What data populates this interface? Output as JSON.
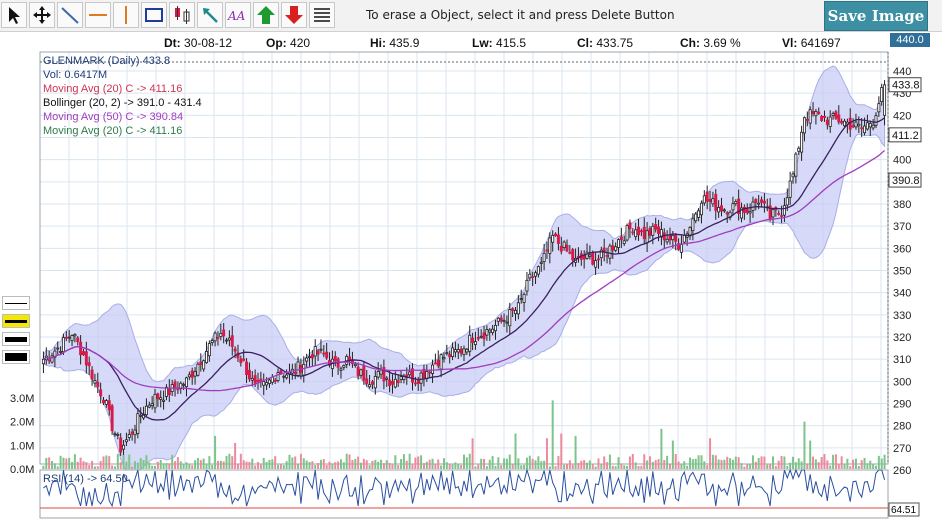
{
  "toolbar": {
    "hint": "To erase a Object, select it and press Delete Button",
    "save_label": "Save Image",
    "tools": [
      "pointer-icon",
      "move-icon",
      "trendline-icon",
      "horizontal-line-icon",
      "vertical-line-icon",
      "rectangle-icon",
      "fibonacci-icon",
      "arrow-icon",
      "text-icon",
      "up-arrow-icon",
      "down-arrow-icon",
      "lines-icon"
    ]
  },
  "info": {
    "dt_label": "Dt:",
    "dt": "30-08-12",
    "op_label": "Op:",
    "op": "420",
    "hi_label": "Hi:",
    "hi": "435.9",
    "lw_label": "Lw:",
    "lw": "415.5",
    "cl_label": "Cl:",
    "cl": "433.75",
    "ch_label": "Ch:",
    "ch": "3.69 %",
    "vl_label": "Vl:",
    "vl": "641697"
  },
  "last_price_badge": "440.0",
  "legend": {
    "title": "GLENMARK (Daily) 433.8",
    "vol": "Vol: 0.6417M",
    "ma20": "Moving Avg (20) C -> 411.16",
    "bollinger": "Bollinger (20, 2) -> 391.0 - 431.4",
    "ma50": "Moving Avg (50) C -> 390.84",
    "ma20b": "Moving Avg (20) C -> 411.16",
    "rsi": "RSI (14) -> 64.50"
  },
  "colors": {
    "up": "#ffffff",
    "down": "#d81b4a",
    "band_fill": "#c8ccf4",
    "band_line": "#a9aee8",
    "ma20": "#3a1f60",
    "ma50": "#a13cc0",
    "vol_up": "#7ec48a",
    "vol_down": "#ee8a9e",
    "grid": "#d9e6ef",
    "accent": "#3d8fa3",
    "title_blue": "#1f3d7a",
    "ma_red": "#cc3355",
    "ma_green": "#2f7a4a"
  },
  "chart_data": {
    "type": "candlestick",
    "title": "GLENMARK (Daily) 433.8",
    "ylim": [
      260,
      440
    ],
    "y_ticks": [
      260,
      270,
      280,
      290,
      300,
      310,
      320,
      330,
      340,
      350,
      360,
      370,
      380,
      390,
      400,
      410,
      420,
      430,
      440
    ],
    "y_tags": [
      {
        "label": "433.8",
        "value": 433.8
      },
      {
        "label": "411.2",
        "value": 411.2
      },
      {
        "label": "390.8",
        "value": 390.8
      }
    ],
    "close_anchors": [
      [
        0,
        310
      ],
      [
        6,
        316
      ],
      [
        10,
        322
      ],
      [
        14,
        312
      ],
      [
        18,
        300
      ],
      [
        21,
        293
      ],
      [
        24,
        280
      ],
      [
        27,
        270
      ],
      [
        30,
        275
      ],
      [
        34,
        285
      ],
      [
        38,
        292
      ],
      [
        42,
        294
      ],
      [
        46,
        297
      ],
      [
        50,
        300
      ],
      [
        54,
        308
      ],
      [
        58,
        316
      ],
      [
        62,
        322
      ],
      [
        66,
        316
      ],
      [
        70,
        308
      ],
      [
        74,
        297
      ],
      [
        78,
        298
      ],
      [
        82,
        305
      ],
      [
        86,
        303
      ],
      [
        90,
        307
      ],
      [
        94,
        313
      ],
      [
        98,
        312
      ],
      [
        102,
        307
      ],
      [
        106,
        310
      ],
      [
        110,
        304
      ],
      [
        114,
        301
      ],
      [
        118,
        303
      ],
      [
        122,
        300
      ],
      [
        126,
        304
      ],
      [
        130,
        301
      ],
      [
        134,
        305
      ],
      [
        138,
        310
      ],
      [
        142,
        312
      ],
      [
        146,
        314
      ],
      [
        150,
        320
      ],
      [
        154,
        322
      ],
      [
        158,
        325
      ],
      [
        162,
        329
      ],
      [
        166,
        333
      ],
      [
        170,
        346
      ],
      [
        174,
        352
      ],
      [
        178,
        365
      ],
      [
        182,
        360
      ],
      [
        186,
        354
      ],
      [
        190,
        356
      ],
      [
        194,
        355
      ],
      [
        198,
        360
      ],
      [
        202,
        365
      ],
      [
        206,
        370
      ],
      [
        210,
        366
      ],
      [
        214,
        368
      ],
      [
        218,
        365
      ],
      [
        222,
        362
      ],
      [
        226,
        370
      ],
      [
        230,
        383
      ],
      [
        234,
        380
      ],
      [
        238,
        378
      ],
      [
        242,
        379
      ],
      [
        246,
        377
      ],
      [
        250,
        382
      ],
      [
        254,
        374
      ],
      [
        258,
        377
      ],
      [
        262,
        393
      ],
      [
        266,
        420
      ],
      [
        270,
        420
      ],
      [
        274,
        418
      ],
      [
        278,
        418
      ],
      [
        282,
        416
      ],
      [
        286,
        414
      ],
      [
        290,
        418
      ],
      [
        294,
        434
      ]
    ],
    "volume_ylim": [
      0,
      3.0
    ],
    "volume_ticks": [
      0,
      1.0,
      2.0,
      3.0
    ],
    "volume_tick_labels": [
      "0.0M",
      "1.0M",
      "2.0M",
      "3.0M"
    ],
    "volume_spikes": [
      [
        60,
        1.4
      ],
      [
        67,
        1.1
      ],
      [
        150,
        1.3
      ],
      [
        165,
        1.5
      ],
      [
        176,
        1.3
      ],
      [
        178,
        2.9
      ],
      [
        181,
        1.5
      ],
      [
        186,
        1.4
      ],
      [
        216,
        1.7
      ],
      [
        220,
        1.2
      ],
      [
        233,
        1.3
      ],
      [
        266,
        2.0
      ],
      [
        268,
        1.2
      ]
    ],
    "rsi_last": 64.5,
    "rsi_badge": "64.51"
  }
}
